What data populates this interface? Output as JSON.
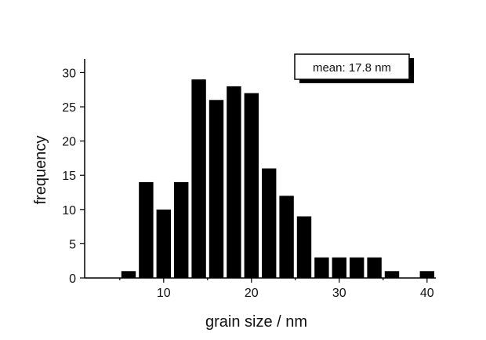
{
  "chart_data": {
    "type": "bar",
    "title": "",
    "xlabel": "grain size / nm",
    "ylabel": "frequency",
    "xlim": [
      1,
      41
    ],
    "ylim": [
      0,
      32
    ],
    "bin_width": 2,
    "x_ticks": [
      10,
      20,
      30,
      40
    ],
    "y_ticks": [
      0,
      5,
      10,
      15,
      20,
      25,
      30
    ],
    "bin_centers": [
      6,
      8,
      10,
      12,
      14,
      16,
      18,
      20,
      22,
      24,
      26,
      28,
      30,
      32,
      34,
      36,
      38,
      40
    ],
    "values": [
      1,
      14,
      10,
      14,
      29,
      26,
      28,
      27,
      16,
      12,
      9,
      3,
      3,
      3,
      3,
      1,
      0,
      1
    ],
    "annotation": "mean: 17.8 nm",
    "grid": false,
    "legend_position": "top-right",
    "bar_color": "#000000"
  }
}
